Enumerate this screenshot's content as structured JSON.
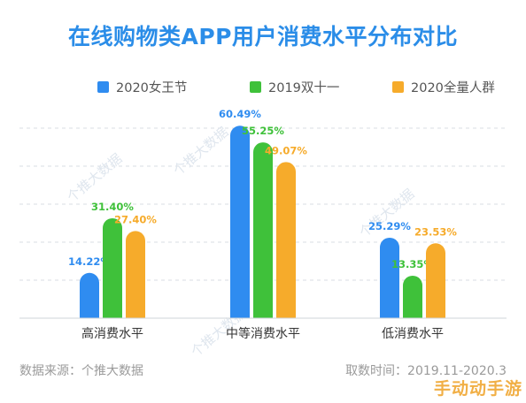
{
  "colors": {
    "title": "#2b8de8",
    "series": [
      "#2f8cf0",
      "#3fc13a",
      "#f6ab2b"
    ],
    "label": "#333333",
    "grid": "#d9dde3"
  },
  "chart_data": {
    "type": "bar",
    "title": "在线购物类APP用户消费水平分布对比",
    "categories": [
      "高消费水平",
      "中等消费水平",
      "低消费水平"
    ],
    "series": [
      {
        "name": "2020女王节",
        "values": [
          14.22,
          60.49,
          25.29
        ],
        "labels": [
          "14.22%",
          "60.49%",
          "25.29%"
        ]
      },
      {
        "name": "2019双十一",
        "values": [
          31.4,
          55.25,
          13.35
        ],
        "labels": [
          "31.40%",
          "55.25%",
          "13.35%"
        ]
      },
      {
        "name": "2020全量人群",
        "values": [
          27.4,
          49.07,
          23.53
        ],
        "labels": [
          "27.40%",
          "49.07%",
          "23.53%"
        ]
      }
    ],
    "ylim": [
      0,
      65
    ],
    "grid": true,
    "legend": "top-center"
  },
  "footer": {
    "source": "数据来源：个推大数据",
    "time": "取数时间：2019.11-2020.3"
  },
  "watermark": {
    "text": "个推大数据",
    "corner": "手动动手游"
  }
}
